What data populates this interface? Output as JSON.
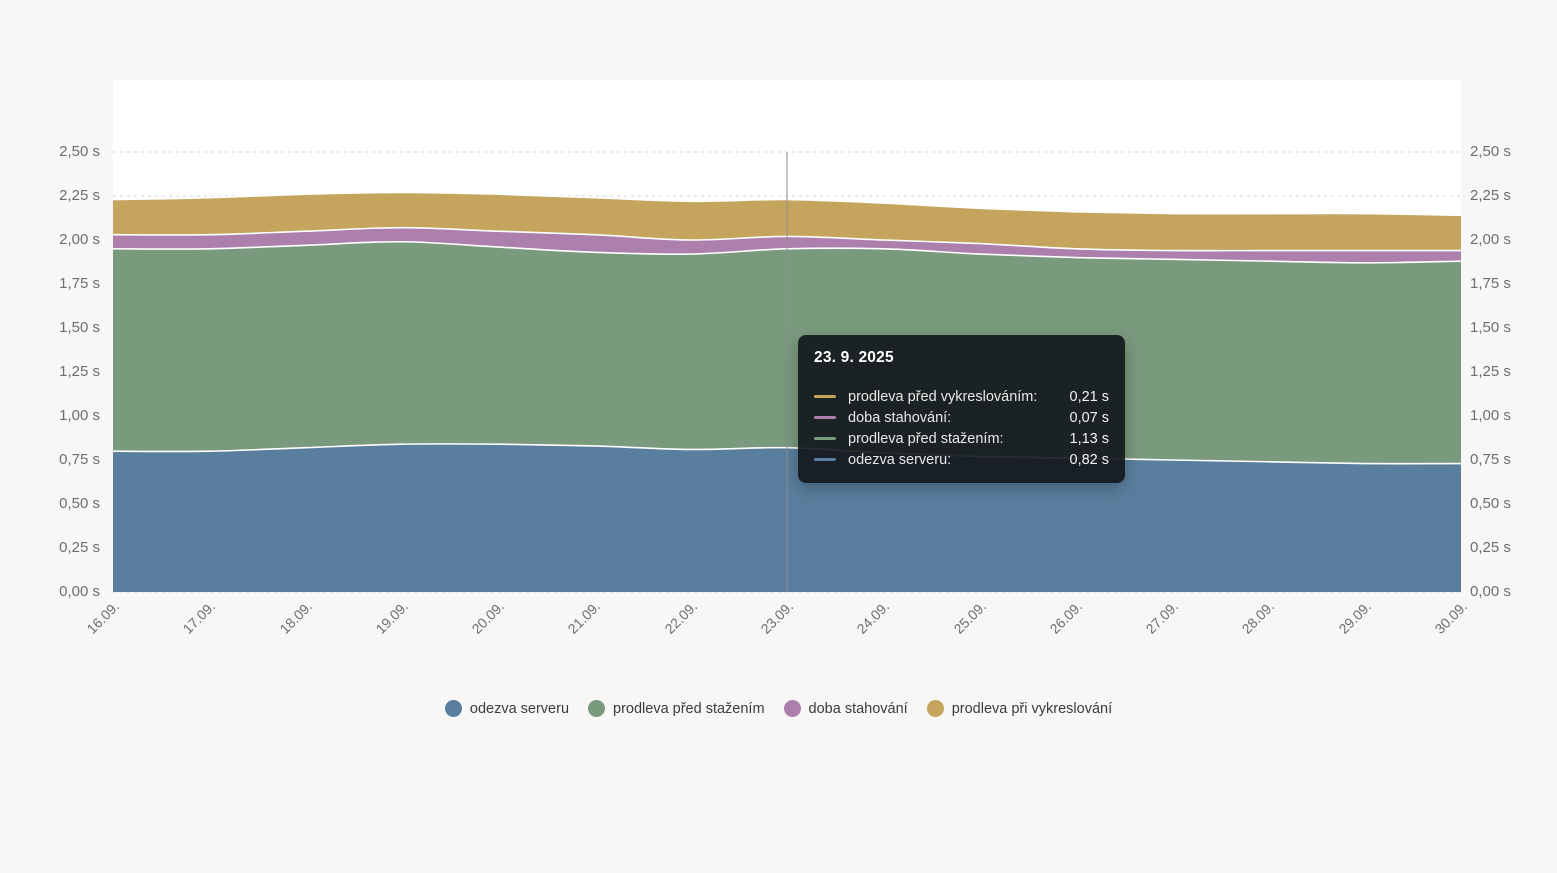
{
  "page": {
    "background": "#f8f7f5",
    "plot_background": "#ffffff",
    "grid_color": "#d4d2d0",
    "axis_text_color": "#6e6e6e",
    "crosshair_color": "#8f8f8f"
  },
  "chart_data": {
    "type": "area",
    "stacked": true,
    "unit": "s",
    "title": "",
    "xlabel": "",
    "ylabel": "",
    "grid": "dashed horizontal",
    "legend_position": "bottom",
    "ylim": [
      0,
      2.5
    ],
    "y_tick_values": [
      0,
      0.25,
      0.5,
      0.75,
      1.0,
      1.25,
      1.5,
      1.75,
      2.0,
      2.25,
      2.5
    ],
    "y_tick_labels": [
      "0,00 s",
      "0,25 s",
      "0,50 s",
      "0,75 s",
      "1,00 s",
      "1,25 s",
      "1,50 s",
      "1,75 s",
      "2,00 s",
      "2,25 s",
      "2,50 s"
    ],
    "y_axis_sides": [
      "left",
      "right"
    ],
    "categories": [
      "16.09.",
      "17.09.",
      "18.09.",
      "19.09.",
      "20.09.",
      "21.09.",
      "22.09.",
      "23.09.",
      "24.09.",
      "25.09.",
      "26.09.",
      "27.09.",
      "28.09.",
      "29.09.",
      "30.09."
    ],
    "crosshair_category": "23.09.",
    "series": [
      {
        "name": "odezva serveru",
        "color": "#5A7F9E",
        "values": [
          0.8,
          0.8,
          0.82,
          0.84,
          0.84,
          0.83,
          0.81,
          0.82,
          0.79,
          0.77,
          0.76,
          0.75,
          0.74,
          0.73,
          0.73
        ]
      },
      {
        "name": "prodleva před stažením",
        "color": "#7A9A7E",
        "values": [
          1.15,
          1.15,
          1.15,
          1.15,
          1.12,
          1.1,
          1.11,
          1.13,
          1.16,
          1.15,
          1.14,
          1.14,
          1.14,
          1.14,
          1.15
        ]
      },
      {
        "name": "doba stahování",
        "color": "#AC7FAC",
        "values": [
          0.08,
          0.08,
          0.08,
          0.08,
          0.09,
          0.1,
          0.08,
          0.07,
          0.05,
          0.06,
          0.05,
          0.05,
          0.06,
          0.07,
          0.06
        ]
      },
      {
        "name": "prodleva při vykreslování",
        "color": "#C5A45E",
        "values": [
          0.2,
          0.21,
          0.21,
          0.2,
          0.21,
          0.21,
          0.22,
          0.21,
          0.21,
          0.2,
          0.21,
          0.21,
          0.21,
          0.21,
          0.2
        ]
      }
    ]
  },
  "tooltip": {
    "title": "23. 9. 2025",
    "rows": [
      {
        "label": "prodleva před vykreslováním:",
        "value": "0,21 s",
        "color": "#C5A45E"
      },
      {
        "label": "doba stahování:",
        "value": "0,07 s",
        "color": "#AC7FAC"
      },
      {
        "label": "prodleva před stažením:",
        "value": "1,13 s",
        "color": "#7A9A7E"
      },
      {
        "label": "odezva serveru:",
        "value": "0,82 s",
        "color": "#5A7F9E"
      }
    ]
  },
  "legend": {
    "items": [
      {
        "label": "odezva serveru",
        "color": "#5A7F9E"
      },
      {
        "label": "prodleva před stažením",
        "color": "#7A9A7E"
      },
      {
        "label": "doba stahování",
        "color": "#AC7FAC"
      },
      {
        "label": "prodleva při vykreslování",
        "color": "#C5A45E"
      }
    ]
  }
}
